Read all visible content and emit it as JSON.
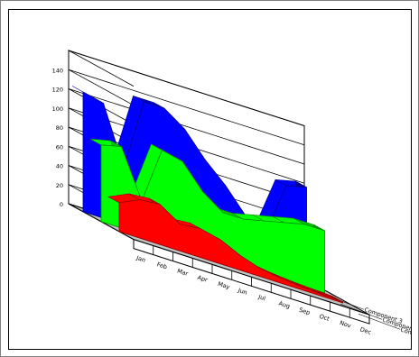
{
  "chart_data": {
    "type": "area",
    "variant": "3d-stacked-ribbons",
    "title": "",
    "xlabel": "",
    "ylabel": "",
    "ylim": [
      0,
      160
    ],
    "y_ticks": [
      "0",
      "20",
      "40",
      "60",
      "80",
      "100",
      "120",
      "140"
    ],
    "categories": [
      "Jan",
      "Feb",
      "Mar",
      "Apr",
      "May",
      "Jun",
      "Jul",
      "Aug",
      "Sep",
      "Oct",
      "Nov",
      "Dec"
    ],
    "series": [
      {
        "name": "Component 3",
        "color": "#0000ff",
        "values": [
          125,
          120,
          60,
          135,
          135,
          120,
          95,
          75,
          50,
          40,
          95,
          100
        ]
      },
      {
        "name": "Component 2",
        "color": "#00ff00",
        "values": [
          80,
          85,
          35,
          95,
          90,
          65,
          50,
          50,
          55,
          60,
          65,
          65
        ]
      },
      {
        "name": "Component 1",
        "color": "#ff0000",
        "values": [
          30,
          40,
          42,
          28,
          30,
          25,
          15,
          8,
          5,
          3,
          2,
          1
        ]
      }
    ],
    "series_label_order": [
      "Component 3",
      "Component 2",
      "Component 1"
    ],
    "grid": true,
    "legend": "none",
    "wall_color": "#ffffff",
    "floor_color": "#c0c0c0"
  }
}
